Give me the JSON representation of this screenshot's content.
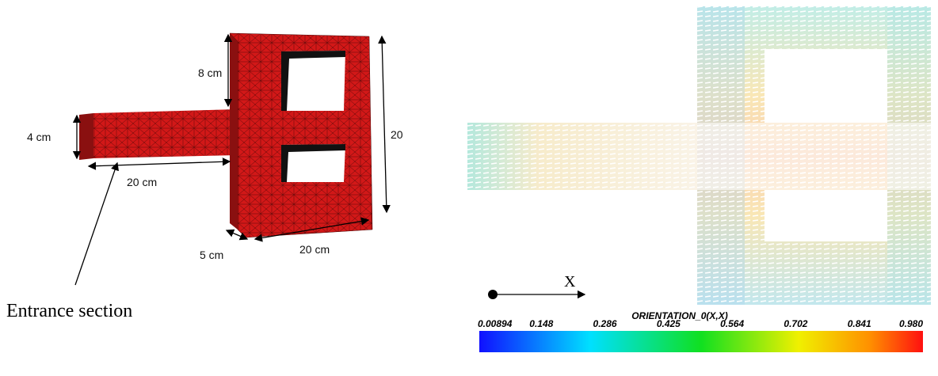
{
  "left_panel": {
    "dimensions": {
      "height_top": "8 cm",
      "arm_height": "4 cm",
      "arm_length": "20 cm",
      "block_height": "20",
      "depth": "5 cm",
      "block_width": "20 cm"
    },
    "annotation": "Entrance section"
  },
  "right_panel": {
    "axis_label": "X",
    "colorbar": {
      "title": "ORIENTATION_0(X,X)",
      "labels": [
        "0.00894",
        "0.148",
        "0.286",
        "0.425",
        "0.564",
        "0.702",
        "0.841",
        "0.980"
      ]
    }
  }
}
